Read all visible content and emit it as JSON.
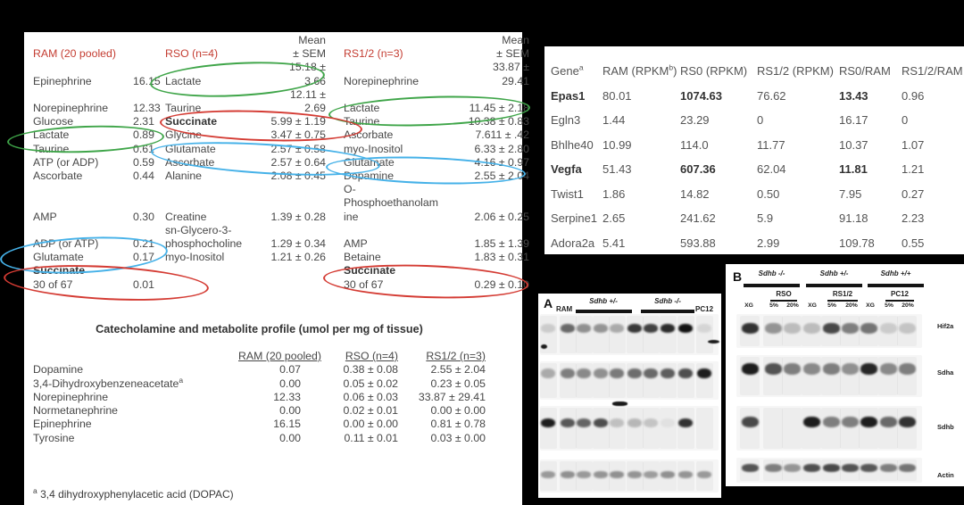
{
  "colors": {
    "background": "#000000",
    "panel": "#ffffff",
    "header_red": "#c43d32",
    "annotation_red": "#d43b33",
    "annotation_green": "#3fa549",
    "annotation_blue": "#45b1e8"
  },
  "metabolite_table": {
    "lines": [
      [
        "",
        "",
        "",
        "Mean",
        "",
        "Mean"
      ],
      [
        {
          "t": "RAM (20 pooled)",
          "r": 1
        },
        "",
        {
          "t": "RSO (n=4)",
          "r": 1
        },
        "± SEM",
        {
          "t": "RS1/2 (n=3)",
          "r": 1
        },
        "± SEM"
      ],
      [
        "",
        "",
        "",
        "15.18 ±",
        "",
        "33.87 ±"
      ],
      [
        "Epinephrine",
        "16.15",
        "Lactate",
        "3.66",
        "Norepinephrine",
        "29.41"
      ],
      [
        "",
        "",
        "",
        "12.11 ±",
        "",
        ""
      ],
      [
        "Norepinephrine",
        "12.33",
        "Taurine",
        "2.69",
        "Lactate",
        "11.45 ± 2.18"
      ],
      [
        "Glucose",
        "2.31",
        {
          "t": "Succinate",
          "b": 1
        },
        "5.99 ± 1.19",
        "Taurine",
        "10.38 ± 0.83"
      ],
      [
        "Lactate",
        "0.89",
        "Glycine",
        "3.47 ± 0.75",
        "Ascorbate",
        "7.611 ± .42"
      ],
      [
        "Taurine",
        "0.61",
        "Glutamate",
        "2.57 ± 0.58",
        "myo-Inositol",
        "6.33 ± 2.80"
      ],
      [
        "ATP (or ADP)",
        "0.59",
        "Ascorbate",
        "2.57 ± 0.64",
        "Glutamate",
        "4.16 ± 0.97"
      ],
      [
        "Ascorbate",
        "0.44",
        "Alanine",
        "2.08 ± 0.45",
        "Dopamine",
        "2.55 ± 2.04"
      ],
      [
        "",
        "",
        "",
        "",
        "O-",
        ""
      ],
      [
        "",
        "",
        "",
        "",
        "Phosphoethanolam",
        ""
      ],
      [
        "AMP",
        "0.30",
        "Creatine",
        "1.39 ± 0.28",
        "ine",
        "2.06 ± 0.25"
      ],
      [
        "",
        "",
        "sn-Glycero-3-",
        "",
        "",
        ""
      ],
      [
        "ADP (or ATP)",
        "0.21",
        "phosphocholine",
        "1.29 ± 0.34",
        "AMP",
        "1.85 ± 1.39"
      ],
      [
        "Glutamate",
        "0.17",
        "myo-Inositol",
        "1.21 ± 0.26",
        "Betaine",
        "1.83 ± 0.31"
      ],
      [
        {
          "t": "Succinate",
          "b": 1
        },
        "",
        "",
        "",
        {
          "t": "Succinate",
          "b": 1
        },
        ""
      ],
      [
        "30 of 67",
        "0.01",
        "",
        "",
        "30 of 67",
        "0.29 ± 0.10"
      ]
    ],
    "annotations": [
      {
        "color": "green",
        "around": "RSO Lactate 15.18 ± 3.66"
      },
      {
        "color": "green",
        "around": "RAM Lactate 0.89"
      },
      {
        "color": "green",
        "around": "RS1/2 Lactate 11.45 ± 2.18"
      },
      {
        "color": "red",
        "around": "RSO Succinate 5.99 ± 1.19"
      },
      {
        "color": "blue",
        "around": "RSO Glutamate 2.57 ± 0.58 and Ascorbate 2.57 ± 0.64"
      },
      {
        "color": "blue",
        "around": "RS1/2 Glutamate 4.16 ± 0.97"
      },
      {
        "color": "blue",
        "around": "RAM ADP (or ATP) 0.21 and Glutamate 0.17"
      },
      {
        "color": "red",
        "around": "RAM Succinate 30 of 67 0.01"
      },
      {
        "color": "red",
        "around": "RS1/2 Succinate 30 of 67 0.29 ± 0.10"
      }
    ]
  },
  "catecholamine_table": {
    "title": "Catecholamine and metabolite profile (umol per mg of tissue)",
    "lines": [
      [
        "",
        {
          "t": "RAM (20 pooled)",
          "u": 1
        },
        {
          "t": "RSO (n=4)",
          "u": 1
        },
        {
          "t": "RS1/2 (n=3)",
          "u": 1
        }
      ],
      [
        "Dopamine",
        "0.07",
        "0.38 ± 0.08",
        "2.55 ± 2.04"
      ],
      [
        {
          "t": "3,4-Dihydroxybenzeneacetate",
          "sup": "a"
        },
        "0.00",
        "0.05 ± 0.02",
        "0.23 ± 0.05"
      ],
      [
        "",
        "",
        "",
        ""
      ],
      [
        "",
        "",
        "",
        ""
      ],
      [
        "Norepinephrine",
        "12.33",
        "0.06 ± 0.03",
        "33.87 ± 29.41"
      ],
      [
        "Normetanephrine",
        "0.00",
        "0.02 ± 0.01",
        "0.00 ± 0.00"
      ],
      [
        "Epinephrine",
        "16.15",
        "0.00 ± 0.00",
        "0.81 ± 0.78"
      ],
      [
        "Tyrosine",
        "0.00",
        "0.11 ± 0.01",
        "0.03 ± 0.00"
      ]
    ],
    "footnote_sup": "a",
    "footnote_text": " 3,4 dihydroxyphenylacetic acid (DOPAC)"
  },
  "gene_table": {
    "lines": [
      [
        {
          "t": "Gene",
          "sup": "a"
        },
        {
          "t": "RAM (RPKM",
          "sup": "b",
          "t2": ")"
        },
        "RS0 (RPKM)",
        "RS1/2 (RPKM)",
        "RS0/RAM",
        "RS1/2/RAM"
      ],
      [
        {
          "t": "Epas1",
          "b": 1
        },
        "80.01",
        {
          "t": "1074.63",
          "b": 1
        },
        "76.62",
        {
          "t": "13.43",
          "b": 1
        },
        "0.96"
      ],
      [
        "Egln3",
        "1.44",
        "23.29",
        "0",
        "16.17",
        "0"
      ],
      [
        "Bhlhe40",
        "10.99",
        "114.0",
        "11.77",
        "10.37",
        "1.07"
      ],
      [
        {
          "t": "Vegfa",
          "b": 1
        },
        "51.43",
        {
          "t": "607.36",
          "b": 1
        },
        "62.04",
        {
          "t": "11.81",
          "b": 1
        },
        "1.21"
      ],
      [
        "Twist1",
        "1.86",
        "14.82",
        "0.50",
        "7.95",
        "0.27"
      ],
      [
        "Serpine1",
        "2.65",
        "241.62",
        "5.9",
        "91.18",
        "2.23"
      ],
      [
        "Adora2a",
        "5.41",
        "593.88",
        "2.99",
        "109.78",
        "0.55"
      ]
    ]
  },
  "western": {
    "panel_a": {
      "label": "A",
      "first_lane_label": "RAM",
      "groups": [
        "Sdhb +/-",
        "Sdhb -/-"
      ],
      "last_lane_label": "PC12",
      "rows": [
        {
          "bands": [
            0.15,
            0.6,
            0.42,
            0.4,
            0.3,
            0.82,
            0.78,
            0.88,
            1.0,
            0.1
          ]
        },
        {
          "bands": [
            0.3,
            0.5,
            0.45,
            0.42,
            0.52,
            0.58,
            0.6,
            0.65,
            0.72,
            0.95
          ]
        },
        {
          "bands": [
            0.95,
            0.68,
            0.62,
            0.72,
            0.2,
            0.24,
            0.18,
            0.05,
            0.85,
            0
          ]
        },
        {
          "bands": [
            0.38,
            0.42,
            0.38,
            0.4,
            0.42,
            0.4,
            0.36,
            0.42,
            0.4,
            0.38
          ]
        }
      ]
    },
    "panel_b": {
      "label": "B",
      "groups": [
        "Sdhb -/-",
        "Sdhb +/-",
        "Sdhb +/+"
      ],
      "subgroups": [
        "RSO",
        "RS1/2",
        "PC12"
      ],
      "lane_labels": [
        "XG",
        "5%",
        "20%",
        "XG",
        "5%",
        "20%",
        "XG",
        "5%",
        "20%"
      ],
      "row_labels": [
        "Hif2a",
        "Sdha",
        "Sdhb",
        "Actin"
      ],
      "rows": [
        {
          "bands": [
            0.85,
            0.4,
            0.22,
            0.22,
            0.75,
            0.5,
            0.55,
            0.15,
            0.18
          ]
        },
        {
          "bands": [
            0.95,
            0.7,
            0.5,
            0.45,
            0.5,
            0.42,
            0.9,
            0.45,
            0.5
          ]
        },
        {
          "bands": [
            0.75,
            0,
            0,
            0.95,
            0.5,
            0.5,
            0.95,
            0.6,
            0.85
          ]
        },
        {
          "bands": [
            0.7,
            0.5,
            0.4,
            0.72,
            0.75,
            0.7,
            0.68,
            0.5,
            0.55
          ]
        }
      ]
    }
  }
}
